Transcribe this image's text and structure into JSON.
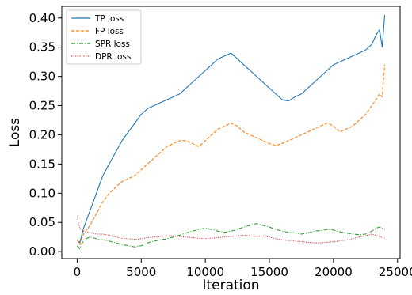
{
  "chart_data": {
    "type": "line",
    "xlabel": "Iteration",
    "ylabel": "Loss",
    "xlim": [
      -1200,
      25200
    ],
    "ylim": [
      -0.012,
      0.42
    ],
    "x_ticks": [
      0,
      5000,
      10000,
      15000,
      20000,
      25000
    ],
    "y_ticks": [
      0.0,
      0.05,
      0.1,
      0.15,
      0.2,
      0.25,
      0.3,
      0.35,
      0.4
    ],
    "x_tick_labels": [
      "0",
      "5000",
      "10000",
      "15000",
      "20000",
      "25000"
    ],
    "y_tick_labels": [
      "0.00",
      "0.05",
      "0.10",
      "0.15",
      "0.20",
      "0.25",
      "0.30",
      "0.35",
      "0.40"
    ],
    "grid": false,
    "legend_position": "top-left",
    "series": [
      {
        "name": "TP loss",
        "color": "#1f77b4",
        "dash": "solid",
        "x": [
          0,
          200,
          500,
          1000,
          1500,
          2000,
          2500,
          3000,
          3500,
          4000,
          4500,
          5000,
          5500,
          6000,
          6500,
          7000,
          7500,
          8000,
          8500,
          9000,
          9500,
          10000,
          10500,
          11000,
          11500,
          12000,
          12500,
          13000,
          13500,
          14000,
          14500,
          15000,
          15500,
          16000,
          16500,
          17000,
          17500,
          18000,
          18500,
          19000,
          19500,
          20000,
          20500,
          21000,
          21500,
          22000,
          22500,
          23000,
          23300,
          23600,
          23800,
          24000
        ],
        "y": [
          0.02,
          0.015,
          0.04,
          0.07,
          0.1,
          0.13,
          0.15,
          0.17,
          0.19,
          0.205,
          0.22,
          0.235,
          0.245,
          0.25,
          0.255,
          0.26,
          0.265,
          0.27,
          0.28,
          0.29,
          0.3,
          0.31,
          0.32,
          0.33,
          0.335,
          0.34,
          0.33,
          0.32,
          0.31,
          0.3,
          0.29,
          0.28,
          0.27,
          0.26,
          0.258,
          0.265,
          0.27,
          0.28,
          0.29,
          0.3,
          0.31,
          0.32,
          0.325,
          0.33,
          0.335,
          0.34,
          0.345,
          0.355,
          0.37,
          0.38,
          0.35,
          0.405
        ]
      },
      {
        "name": "FP loss",
        "color": "#ff7f0e",
        "dash": "dashed",
        "x": [
          0,
          200,
          500,
          1000,
          1500,
          2000,
          2500,
          3000,
          3500,
          4000,
          4500,
          5000,
          5500,
          6000,
          6500,
          7000,
          7500,
          8000,
          8500,
          9000,
          9500,
          10000,
          10500,
          11000,
          11500,
          12000,
          12500,
          13000,
          13500,
          14000,
          14500,
          15000,
          15500,
          16000,
          16500,
          17000,
          17500,
          18000,
          18500,
          19000,
          19500,
          20000,
          20500,
          21000,
          21500,
          22000,
          22500,
          23000,
          23300,
          23600,
          23800,
          24000
        ],
        "y": [
          0.02,
          0.012,
          0.03,
          0.045,
          0.065,
          0.085,
          0.1,
          0.11,
          0.12,
          0.125,
          0.13,
          0.14,
          0.15,
          0.16,
          0.17,
          0.18,
          0.185,
          0.19,
          0.19,
          0.185,
          0.18,
          0.19,
          0.2,
          0.21,
          0.215,
          0.22,
          0.215,
          0.205,
          0.2,
          0.195,
          0.19,
          0.185,
          0.182,
          0.185,
          0.19,
          0.195,
          0.2,
          0.205,
          0.21,
          0.215,
          0.22,
          0.215,
          0.205,
          0.21,
          0.215,
          0.225,
          0.235,
          0.25,
          0.26,
          0.27,
          0.265,
          0.32
        ]
      },
      {
        "name": "SPR loss",
        "color": "#2ca02c",
        "dash": "dashdot",
        "x": [
          0,
          200,
          500,
          1000,
          1500,
          2000,
          2500,
          3000,
          3500,
          4000,
          4500,
          5000,
          5500,
          6000,
          6500,
          7000,
          7500,
          8000,
          8500,
          9000,
          9500,
          10000,
          10500,
          11000,
          11500,
          12000,
          12500,
          13000,
          13500,
          14000,
          14500,
          15000,
          15500,
          16000,
          16500,
          17000,
          17500,
          18000,
          18500,
          19000,
          19500,
          20000,
          20500,
          21000,
          21500,
          22000,
          22500,
          23000,
          23300,
          23600,
          23800,
          24000
        ],
        "y": [
          0.01,
          0.005,
          0.02,
          0.025,
          0.022,
          0.02,
          0.018,
          0.015,
          0.012,
          0.01,
          0.008,
          0.01,
          0.015,
          0.018,
          0.02,
          0.022,
          0.025,
          0.028,
          0.032,
          0.035,
          0.038,
          0.04,
          0.038,
          0.035,
          0.033,
          0.035,
          0.038,
          0.042,
          0.045,
          0.048,
          0.045,
          0.042,
          0.038,
          0.035,
          0.033,
          0.032,
          0.03,
          0.032,
          0.035,
          0.036,
          0.038,
          0.037,
          0.034,
          0.032,
          0.03,
          0.029,
          0.03,
          0.035,
          0.04,
          0.042,
          0.04,
          0.038
        ]
      },
      {
        "name": "DPR loss",
        "color": "#d62728",
        "dash": "dotted",
        "x": [
          0,
          200,
          500,
          1000,
          1500,
          2000,
          2500,
          3000,
          3500,
          4000,
          4500,
          5000,
          5500,
          6000,
          6500,
          7000,
          7500,
          8000,
          8500,
          9000,
          9500,
          10000,
          10500,
          11000,
          11500,
          12000,
          12500,
          13000,
          13500,
          14000,
          14500,
          15000,
          15500,
          16000,
          16500,
          17000,
          17500,
          18000,
          18500,
          19000,
          19500,
          20000,
          20500,
          21000,
          21500,
          22000,
          22500,
          23000,
          23300,
          23600,
          23800,
          24000
        ],
        "y": [
          0.06,
          0.04,
          0.035,
          0.033,
          0.03,
          0.03,
          0.028,
          0.025,
          0.023,
          0.022,
          0.021,
          0.022,
          0.024,
          0.025,
          0.026,
          0.027,
          0.027,
          0.026,
          0.025,
          0.024,
          0.023,
          0.022,
          0.023,
          0.024,
          0.025,
          0.026,
          0.027,
          0.028,
          0.027,
          0.026,
          0.027,
          0.025,
          0.022,
          0.02,
          0.019,
          0.018,
          0.017,
          0.016,
          0.015,
          0.015,
          0.016,
          0.017,
          0.018,
          0.02,
          0.022,
          0.025,
          0.027,
          0.03,
          0.028,
          0.026,
          0.024,
          0.022
        ]
      }
    ]
  }
}
